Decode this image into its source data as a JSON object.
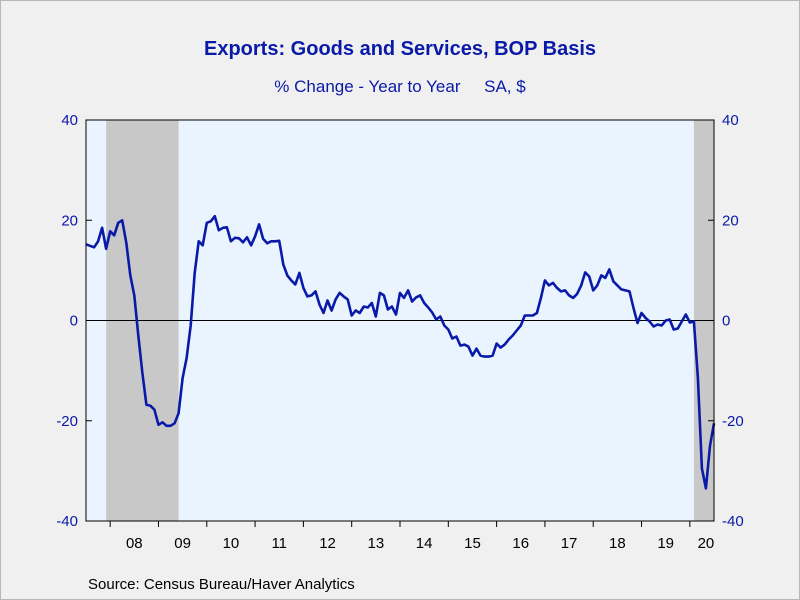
{
  "chart_data": {
    "type": "line",
    "title": "Exports: Goods and Services, BOP Basis",
    "subtitle": "% Change - Year to Year     SA, $",
    "source": "Source:  Census Bureau/Haver Analytics",
    "ylim": [
      -40,
      40
    ],
    "yticks": [
      "40",
      "20",
      "0",
      "-20",
      "-40"
    ],
    "x_start": "2007-07",
    "x_end": "2020-07",
    "year_labels": [
      {
        "date": "2008-07",
        "label": "08"
      },
      {
        "date": "2009-07",
        "label": "09"
      },
      {
        "date": "2010-07",
        "label": "10"
      },
      {
        "date": "2011-07",
        "label": "11"
      },
      {
        "date": "2012-07",
        "label": "12"
      },
      {
        "date": "2013-07",
        "label": "13"
      },
      {
        "date": "2014-07",
        "label": "14"
      },
      {
        "date": "2015-07",
        "label": "15"
      },
      {
        "date": "2016-07",
        "label": "16"
      },
      {
        "date": "2017-07",
        "label": "17"
      },
      {
        "date": "2018-07",
        "label": "18"
      },
      {
        "date": "2019-07",
        "label": "19"
      },
      {
        "date": "2020-05",
        "label": "20"
      }
    ],
    "recessions": [
      {
        "start": "2007-12",
        "end": "2009-06"
      },
      {
        "start": "2020-02",
        "end": "2020-07"
      }
    ],
    "colors": {
      "line": "#0a1aa8",
      "recession": "#c8c8c8",
      "plot_bg": "#eaf4ff",
      "zero_line": "#000000"
    },
    "series": [
      {
        "values": [
          {
            "x": "2007-07",
            "y": 15.2
          },
          {
            "x": "2007-08",
            "y": 14.9
          },
          {
            "x": "2007-09",
            "y": 14.6
          },
          {
            "x": "2007-10",
            "y": 15.8
          },
          {
            "x": "2007-11",
            "y": 18.5
          },
          {
            "x": "2007-12",
            "y": 14.3
          },
          {
            "x": "2008-01",
            "y": 17.8
          },
          {
            "x": "2008-02",
            "y": 17.0
          },
          {
            "x": "2008-03",
            "y": 19.5
          },
          {
            "x": "2008-04",
            "y": 20.0
          },
          {
            "x": "2008-05",
            "y": 15.5
          },
          {
            "x": "2008-06",
            "y": 9.0
          },
          {
            "x": "2008-07",
            "y": 5.0
          },
          {
            "x": "2008-08",
            "y": -3.0
          },
          {
            "x": "2008-09",
            "y": -10.5
          },
          {
            "x": "2008-10",
            "y": -16.8
          },
          {
            "x": "2008-11",
            "y": -17.0
          },
          {
            "x": "2008-12",
            "y": -17.8
          },
          {
            "x": "2009-01",
            "y": -20.8
          },
          {
            "x": "2009-02",
            "y": -20.3
          },
          {
            "x": "2009-03",
            "y": -21.0
          },
          {
            "x": "2009-04",
            "y": -21.0
          },
          {
            "x": "2009-05",
            "y": -20.5
          },
          {
            "x": "2009-06",
            "y": -18.5
          },
          {
            "x": "2009-07",
            "y": -11.5
          },
          {
            "x": "2009-08",
            "y": -7.5
          },
          {
            "x": "2009-09",
            "y": -1.0
          },
          {
            "x": "2009-10",
            "y": 9.5
          },
          {
            "x": "2009-11",
            "y": 15.8
          },
          {
            "x": "2009-12",
            "y": 15.0
          },
          {
            "x": "2010-01",
            "y": 19.5
          },
          {
            "x": "2010-02",
            "y": 19.8
          },
          {
            "x": "2010-03",
            "y": 20.8
          },
          {
            "x": "2010-04",
            "y": 18.0
          },
          {
            "x": "2010-05",
            "y": 18.5
          },
          {
            "x": "2010-06",
            "y": 18.6
          },
          {
            "x": "2010-07",
            "y": 15.8
          },
          {
            "x": "2010-08",
            "y": 16.5
          },
          {
            "x": "2010-09",
            "y": 16.4
          },
          {
            "x": "2010-10",
            "y": 15.6
          },
          {
            "x": "2010-11",
            "y": 16.6
          },
          {
            "x": "2010-12",
            "y": 15.0
          },
          {
            "x": "2011-01",
            "y": 16.8
          },
          {
            "x": "2011-02",
            "y": 19.2
          },
          {
            "x": "2011-03",
            "y": 16.3
          },
          {
            "x": "2011-04",
            "y": 15.4
          },
          {
            "x": "2011-05",
            "y": 15.8
          },
          {
            "x": "2011-06",
            "y": 15.8
          },
          {
            "x": "2011-07",
            "y": 15.9
          },
          {
            "x": "2011-08",
            "y": 11.2
          },
          {
            "x": "2011-09",
            "y": 9.0
          },
          {
            "x": "2011-10",
            "y": 8.0
          },
          {
            "x": "2011-11",
            "y": 7.2
          },
          {
            "x": "2011-12",
            "y": 9.5
          },
          {
            "x": "2012-01",
            "y": 6.5
          },
          {
            "x": "2012-02",
            "y": 4.8
          },
          {
            "x": "2012-03",
            "y": 5.0
          },
          {
            "x": "2012-04",
            "y": 5.8
          },
          {
            "x": "2012-05",
            "y": 3.2
          },
          {
            "x": "2012-06",
            "y": 1.5
          },
          {
            "x": "2012-07",
            "y": 4.0
          },
          {
            "x": "2012-08",
            "y": 2.0
          },
          {
            "x": "2012-09",
            "y": 4.2
          },
          {
            "x": "2012-10",
            "y": 5.5
          },
          {
            "x": "2012-11",
            "y": 4.8
          },
          {
            "x": "2012-12",
            "y": 4.2
          },
          {
            "x": "2013-01",
            "y": 1.0
          },
          {
            "x": "2013-02",
            "y": 2.0
          },
          {
            "x": "2013-03",
            "y": 1.5
          },
          {
            "x": "2013-04",
            "y": 2.8
          },
          {
            "x": "2013-05",
            "y": 2.6
          },
          {
            "x": "2013-06",
            "y": 3.5
          },
          {
            "x": "2013-07",
            "y": 0.8
          },
          {
            "x": "2013-08",
            "y": 5.5
          },
          {
            "x": "2013-09",
            "y": 5.0
          },
          {
            "x": "2013-10",
            "y": 2.2
          },
          {
            "x": "2013-11",
            "y": 2.8
          },
          {
            "x": "2013-12",
            "y": 1.2
          },
          {
            "x": "2014-01",
            "y": 5.5
          },
          {
            "x": "2014-02",
            "y": 4.5
          },
          {
            "x": "2014-03",
            "y": 6.0
          },
          {
            "x": "2014-04",
            "y": 3.8
          },
          {
            "x": "2014-05",
            "y": 4.6
          },
          {
            "x": "2014-06",
            "y": 5.0
          },
          {
            "x": "2014-07",
            "y": 3.5
          },
          {
            "x": "2014-08",
            "y": 2.6
          },
          {
            "x": "2014-09",
            "y": 1.6
          },
          {
            "x": "2014-10",
            "y": 0.2
          },
          {
            "x": "2014-11",
            "y": 0.8
          },
          {
            "x": "2014-12",
            "y": -1.0
          },
          {
            "x": "2015-01",
            "y": -1.8
          },
          {
            "x": "2015-02",
            "y": -3.6
          },
          {
            "x": "2015-03",
            "y": -3.2
          },
          {
            "x": "2015-04",
            "y": -5.0
          },
          {
            "x": "2015-05",
            "y": -4.8
          },
          {
            "x": "2015-06",
            "y": -5.2
          },
          {
            "x": "2015-07",
            "y": -7.0
          },
          {
            "x": "2015-08",
            "y": -5.6
          },
          {
            "x": "2015-09",
            "y": -7.0
          },
          {
            "x": "2015-10",
            "y": -7.2
          },
          {
            "x": "2015-11",
            "y": -7.2
          },
          {
            "x": "2015-12",
            "y": -7.0
          },
          {
            "x": "2016-01",
            "y": -4.6
          },
          {
            "x": "2016-02",
            "y": -5.4
          },
          {
            "x": "2016-03",
            "y": -4.8
          },
          {
            "x": "2016-04",
            "y": -3.8
          },
          {
            "x": "2016-05",
            "y": -3.0
          },
          {
            "x": "2016-06",
            "y": -2.0
          },
          {
            "x": "2016-07",
            "y": -1.0
          },
          {
            "x": "2016-08",
            "y": 1.0
          },
          {
            "x": "2016-09",
            "y": 1.0
          },
          {
            "x": "2016-10",
            "y": 1.0
          },
          {
            "x": "2016-11",
            "y": 1.5
          },
          {
            "x": "2016-12",
            "y": 4.5
          },
          {
            "x": "2017-01",
            "y": 8.0
          },
          {
            "x": "2017-02",
            "y": 7.0
          },
          {
            "x": "2017-03",
            "y": 7.5
          },
          {
            "x": "2017-04",
            "y": 6.5
          },
          {
            "x": "2017-05",
            "y": 5.8
          },
          {
            "x": "2017-06",
            "y": 6.0
          },
          {
            "x": "2017-07",
            "y": 5.0
          },
          {
            "x": "2017-08",
            "y": 4.5
          },
          {
            "x": "2017-09",
            "y": 5.3
          },
          {
            "x": "2017-10",
            "y": 7.0
          },
          {
            "x": "2017-11",
            "y": 9.6
          },
          {
            "x": "2017-12",
            "y": 8.8
          },
          {
            "x": "2018-01",
            "y": 6.0
          },
          {
            "x": "2018-02",
            "y": 7.0
          },
          {
            "x": "2018-03",
            "y": 9.0
          },
          {
            "x": "2018-04",
            "y": 8.5
          },
          {
            "x": "2018-05",
            "y": 10.2
          },
          {
            "x": "2018-06",
            "y": 7.8
          },
          {
            "x": "2018-07",
            "y": 7.0
          },
          {
            "x": "2018-08",
            "y": 6.2
          },
          {
            "x": "2018-09",
            "y": 6.0
          },
          {
            "x": "2018-10",
            "y": 5.8
          },
          {
            "x": "2018-11",
            "y": 2.5
          },
          {
            "x": "2018-12",
            "y": -0.5
          },
          {
            "x": "2019-01",
            "y": 1.5
          },
          {
            "x": "2019-02",
            "y": 0.5
          },
          {
            "x": "2019-03",
            "y": -0.2
          },
          {
            "x": "2019-04",
            "y": -1.2
          },
          {
            "x": "2019-05",
            "y": -0.8
          },
          {
            "x": "2019-06",
            "y": -1.0
          },
          {
            "x": "2019-07",
            "y": 0.0
          },
          {
            "x": "2019-08",
            "y": 0.2
          },
          {
            "x": "2019-09",
            "y": -1.8
          },
          {
            "x": "2019-10",
            "y": -1.6
          },
          {
            "x": "2019-11",
            "y": -0.2
          },
          {
            "x": "2019-12",
            "y": 1.2
          },
          {
            "x": "2020-01",
            "y": -0.4
          },
          {
            "x": "2020-02",
            "y": -0.2
          },
          {
            "x": "2020-03",
            "y": -11.5
          },
          {
            "x": "2020-04",
            "y": -29.5
          },
          {
            "x": "2020-05",
            "y": -33.5
          },
          {
            "x": "2020-06",
            "y": -25.0
          },
          {
            "x": "2020-07",
            "y": -20.5
          }
        ]
      }
    ]
  }
}
